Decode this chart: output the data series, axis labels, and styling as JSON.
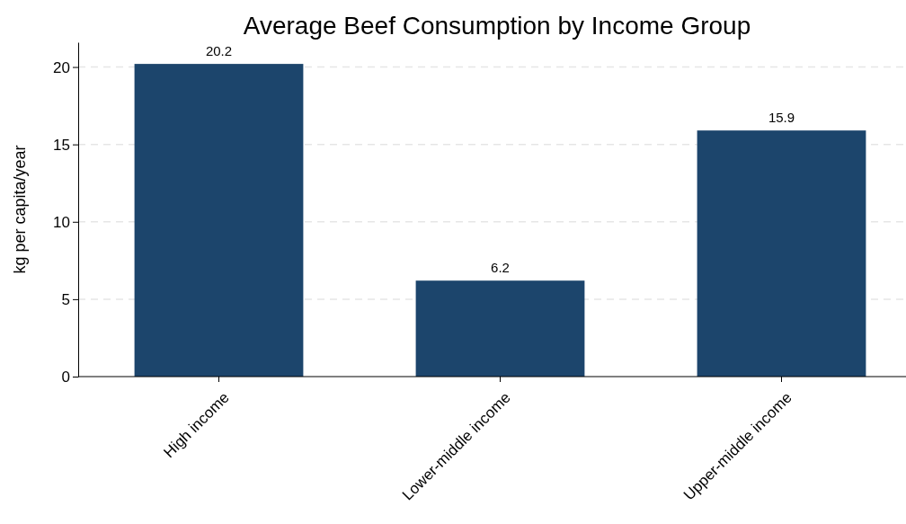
{
  "chart_data": {
    "type": "bar",
    "title": "Average Beef Consumption by Income Group",
    "ylabel": "kg per capita/year",
    "categories": [
      "High income",
      "Lower-middle income",
      "Upper-middle income"
    ],
    "values": [
      20.2,
      6.2,
      15.9
    ],
    "color": "#1c456c",
    "ylim": [
      0,
      21.6
    ],
    "yticks": [
      0,
      5,
      10,
      15,
      20
    ],
    "grid": "y",
    "data_labels": true
  }
}
